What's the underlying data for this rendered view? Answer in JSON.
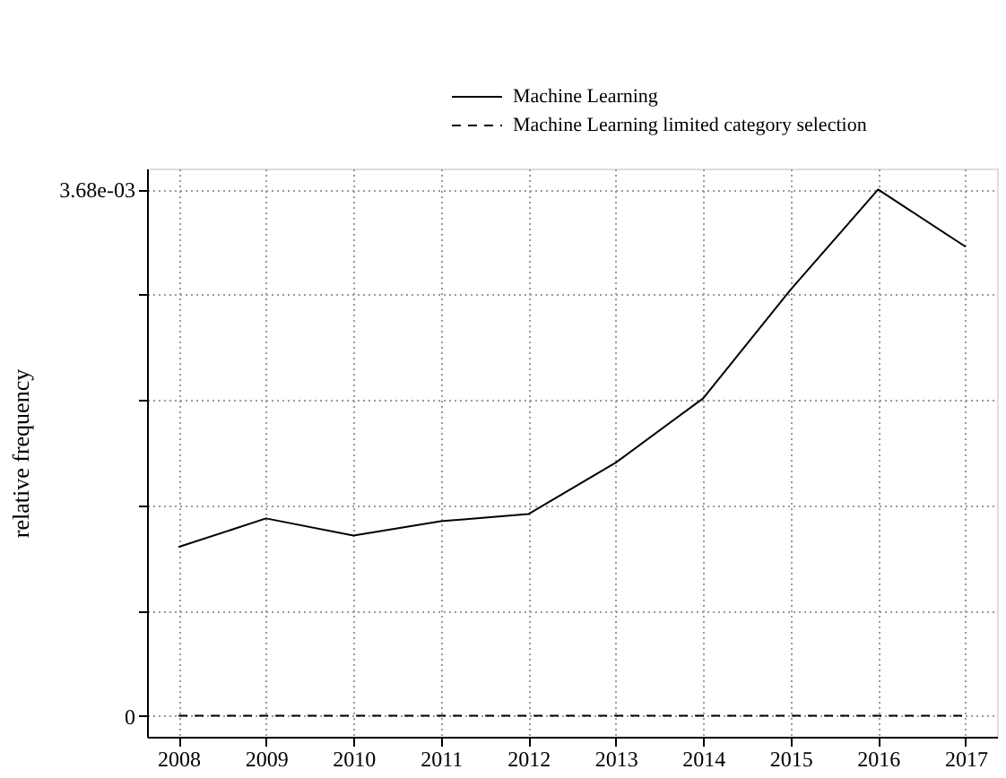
{
  "chart_data": {
    "type": "line",
    "ylabel": "relative frequency",
    "x": [
      2008,
      2009,
      2010,
      2011,
      2012,
      2013,
      2014,
      2015,
      2016,
      2017
    ],
    "series": [
      {
        "name": "Machine Learning",
        "color": "#000000",
        "line_style": "solid",
        "values": [
          0.00118,
          0.00138,
          0.00126,
          0.00136,
          0.00141,
          0.00177,
          0.00222,
          0.00298,
          0.00368,
          0.00328
        ]
      },
      {
        "name": "Machine Learning limited category selection",
        "color": "#000000",
        "line_style": "dashed",
        "values": [
          0,
          0,
          0,
          0,
          0,
          0,
          0,
          0,
          0,
          0
        ]
      }
    ],
    "xlim": [
      2007.64,
      2017.36
    ],
    "xticks": [
      2008,
      2009,
      2010,
      2011,
      2012,
      2013,
      2014,
      2015,
      2016,
      2017
    ],
    "ylim": [
      -0.000147,
      0.003827
    ],
    "yticks": [
      {
        "value": 0,
        "label": "0"
      },
      {
        "value": 0.000736,
        "label": null
      },
      {
        "value": 0.001472,
        "label": null
      },
      {
        "value": 0.002208,
        "label": null
      },
      {
        "value": 0.002944,
        "label": null
      },
      {
        "value": 0.00368,
        "label": "3.68e-03"
      }
    ],
    "grid": true,
    "legend": "top",
    "marker": "none"
  }
}
